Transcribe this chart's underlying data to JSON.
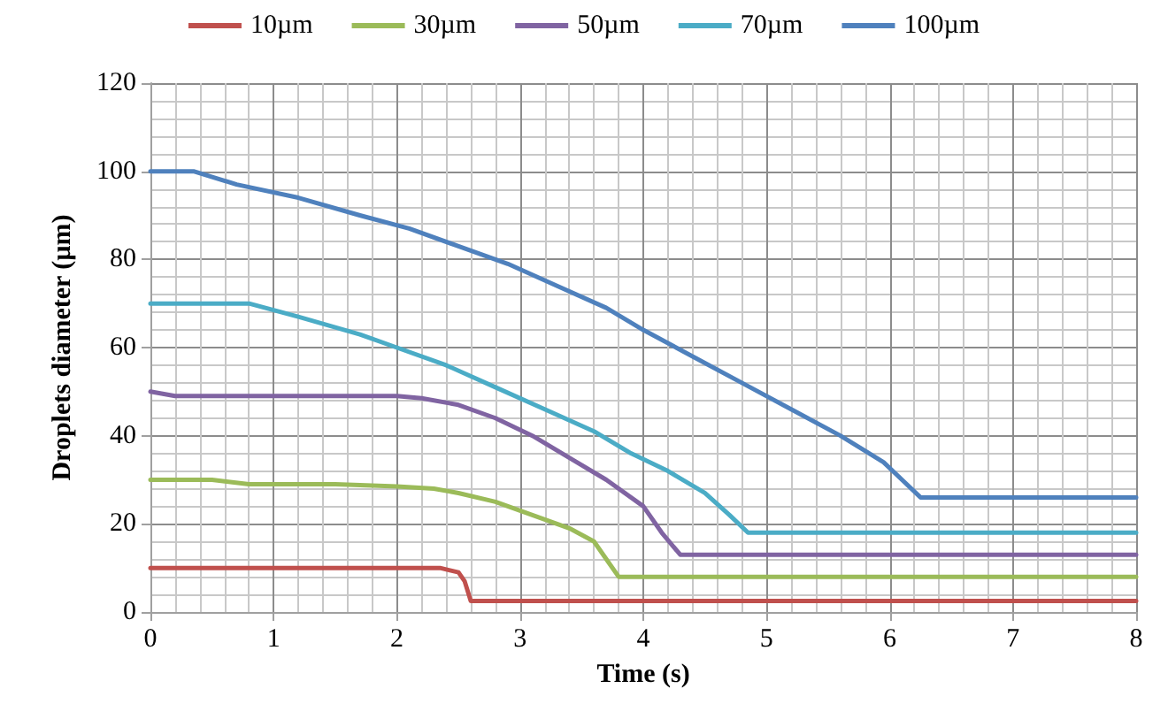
{
  "chart_data": {
    "type": "line",
    "xlabel": "Time (s)",
    "ylabel": "Droplets diameter (µm)",
    "xlim": [
      0,
      8
    ],
    "xticks": [
      0,
      1,
      2,
      3,
      4,
      5,
      6,
      7,
      8
    ],
    "ylim": [
      0,
      120
    ],
    "yticks": [
      0,
      20,
      40,
      60,
      80,
      100,
      120
    ],
    "grid": true,
    "legend": "top",
    "marker": "none",
    "line_style": "solid",
    "series": [
      {
        "name": "10µm",
        "color": "#c0504d",
        "x": [
          0,
          1,
          2,
          2.35,
          2.5,
          2.55,
          2.6,
          4,
          6,
          8
        ],
        "values": [
          10,
          10,
          10,
          10,
          9,
          7,
          2.5,
          2.5,
          2.5,
          2.5
        ]
      },
      {
        "name": "30µm",
        "color": "#9bbb59",
        "x": [
          0,
          0.5,
          0.8,
          1.5,
          2,
          2.3,
          2.5,
          2.8,
          3.1,
          3.4,
          3.6,
          3.7,
          3.8,
          5,
          8
        ],
        "values": [
          30,
          30,
          29,
          29,
          28.5,
          28,
          27,
          25,
          22,
          19,
          16,
          12,
          8,
          8,
          8
        ]
      },
      {
        "name": "50µm",
        "color": "#8064a2",
        "x": [
          0,
          0.2,
          1,
          2,
          2.2,
          2.5,
          2.8,
          3.1,
          3.4,
          3.7,
          4,
          4.15,
          4.3,
          6,
          8
        ],
        "values": [
          50,
          49,
          49,
          49,
          48.5,
          47,
          44,
          40,
          35,
          30,
          24,
          18,
          13,
          13,
          13
        ]
      },
      {
        "name": "70µm",
        "color": "#4bacc6",
        "x": [
          0,
          0.8,
          1.2,
          1.7,
          2,
          2.4,
          2.8,
          3.2,
          3.6,
          3.9,
          4.2,
          4.5,
          4.7,
          4.85,
          6,
          8
        ],
        "values": [
          70,
          70,
          67,
          63,
          60,
          56,
          51,
          46,
          41,
          36,
          32,
          27,
          22,
          18,
          18,
          18
        ]
      },
      {
        "name": "100µm",
        "color": "#4f81bd",
        "x": [
          0,
          0.35,
          0.7,
          1.2,
          1.7,
          2.1,
          2.5,
          2.9,
          3.3,
          3.7,
          4,
          4.4,
          4.8,
          5.2,
          5.6,
          5.95,
          6.1,
          6.25,
          7,
          8
        ],
        "values": [
          100,
          100,
          97,
          94,
          90,
          87,
          83,
          79,
          74,
          69,
          64,
          58,
          52,
          46,
          40,
          34,
          30,
          26,
          26,
          26
        ]
      }
    ]
  }
}
